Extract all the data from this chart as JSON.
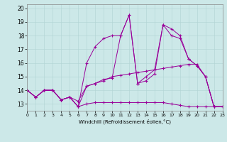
{
  "xlabel": "Windchill (Refroidissement éolien,°C)",
  "background_color": "#cce8e8",
  "line_color": "#990099",
  "xmin": 0,
  "xmax": 23,
  "ymin": 12.5,
  "ymax": 20.3,
  "yticks": [
    13,
    14,
    15,
    16,
    17,
    18,
    19,
    20
  ],
  "xticks": [
    0,
    1,
    2,
    3,
    4,
    5,
    6,
    7,
    8,
    9,
    10,
    11,
    12,
    13,
    14,
    15,
    16,
    17,
    18,
    19,
    20,
    21,
    22,
    23
  ],
  "series": [
    {
      "x": [
        0,
        1,
        2,
        3,
        4,
        5,
        6,
        7,
        8,
        9,
        10,
        11,
        12,
        13,
        14,
        15,
        16,
        17,
        18,
        19,
        20,
        21,
        22,
        23
      ],
      "y": [
        14.0,
        13.5,
        14.0,
        14.0,
        13.3,
        13.5,
        12.8,
        16.0,
        17.2,
        17.8,
        18.0,
        18.0,
        19.5,
        14.5,
        14.7,
        15.2,
        18.8,
        18.5,
        18.0,
        16.3,
        15.8,
        15.0,
        12.8,
        12.8
      ]
    },
    {
      "x": [
        0,
        1,
        2,
        3,
        4,
        5,
        6,
        7,
        8,
        9,
        10,
        11,
        12,
        13,
        14,
        15,
        16,
        17,
        18,
        19,
        20,
        21,
        22,
        23
      ],
      "y": [
        14.0,
        13.5,
        14.0,
        14.0,
        13.3,
        13.5,
        12.8,
        13.0,
        13.1,
        13.1,
        13.1,
        13.1,
        13.1,
        13.1,
        13.1,
        13.1,
        13.1,
        13.0,
        12.9,
        12.8,
        12.8,
        12.8,
        12.8,
        12.8
      ]
    },
    {
      "x": [
        0,
        1,
        2,
        3,
        4,
        5,
        6,
        7,
        8,
        9,
        10,
        11,
        12,
        13,
        14,
        15,
        16,
        17,
        18,
        19,
        20,
        21,
        22,
        23
      ],
      "y": [
        14.0,
        13.5,
        14.0,
        14.0,
        13.3,
        13.5,
        13.2,
        14.3,
        14.5,
        14.7,
        15.0,
        15.1,
        15.2,
        15.3,
        15.4,
        15.5,
        15.6,
        15.7,
        15.8,
        15.9,
        15.9,
        15.0,
        12.8,
        12.8
      ]
    },
    {
      "x": [
        0,
        1,
        2,
        3,
        4,
        5,
        6,
        7,
        8,
        9,
        10,
        11,
        12,
        13,
        14,
        15,
        16,
        17,
        18,
        19,
        20,
        21,
        22,
        23
      ],
      "y": [
        14.0,
        13.5,
        14.0,
        14.0,
        13.3,
        13.5,
        12.8,
        14.3,
        14.5,
        14.8,
        14.9,
        18.0,
        19.5,
        14.5,
        15.0,
        15.5,
        18.8,
        18.0,
        17.8,
        16.3,
        15.8,
        15.0,
        12.8,
        12.8
      ]
    }
  ]
}
